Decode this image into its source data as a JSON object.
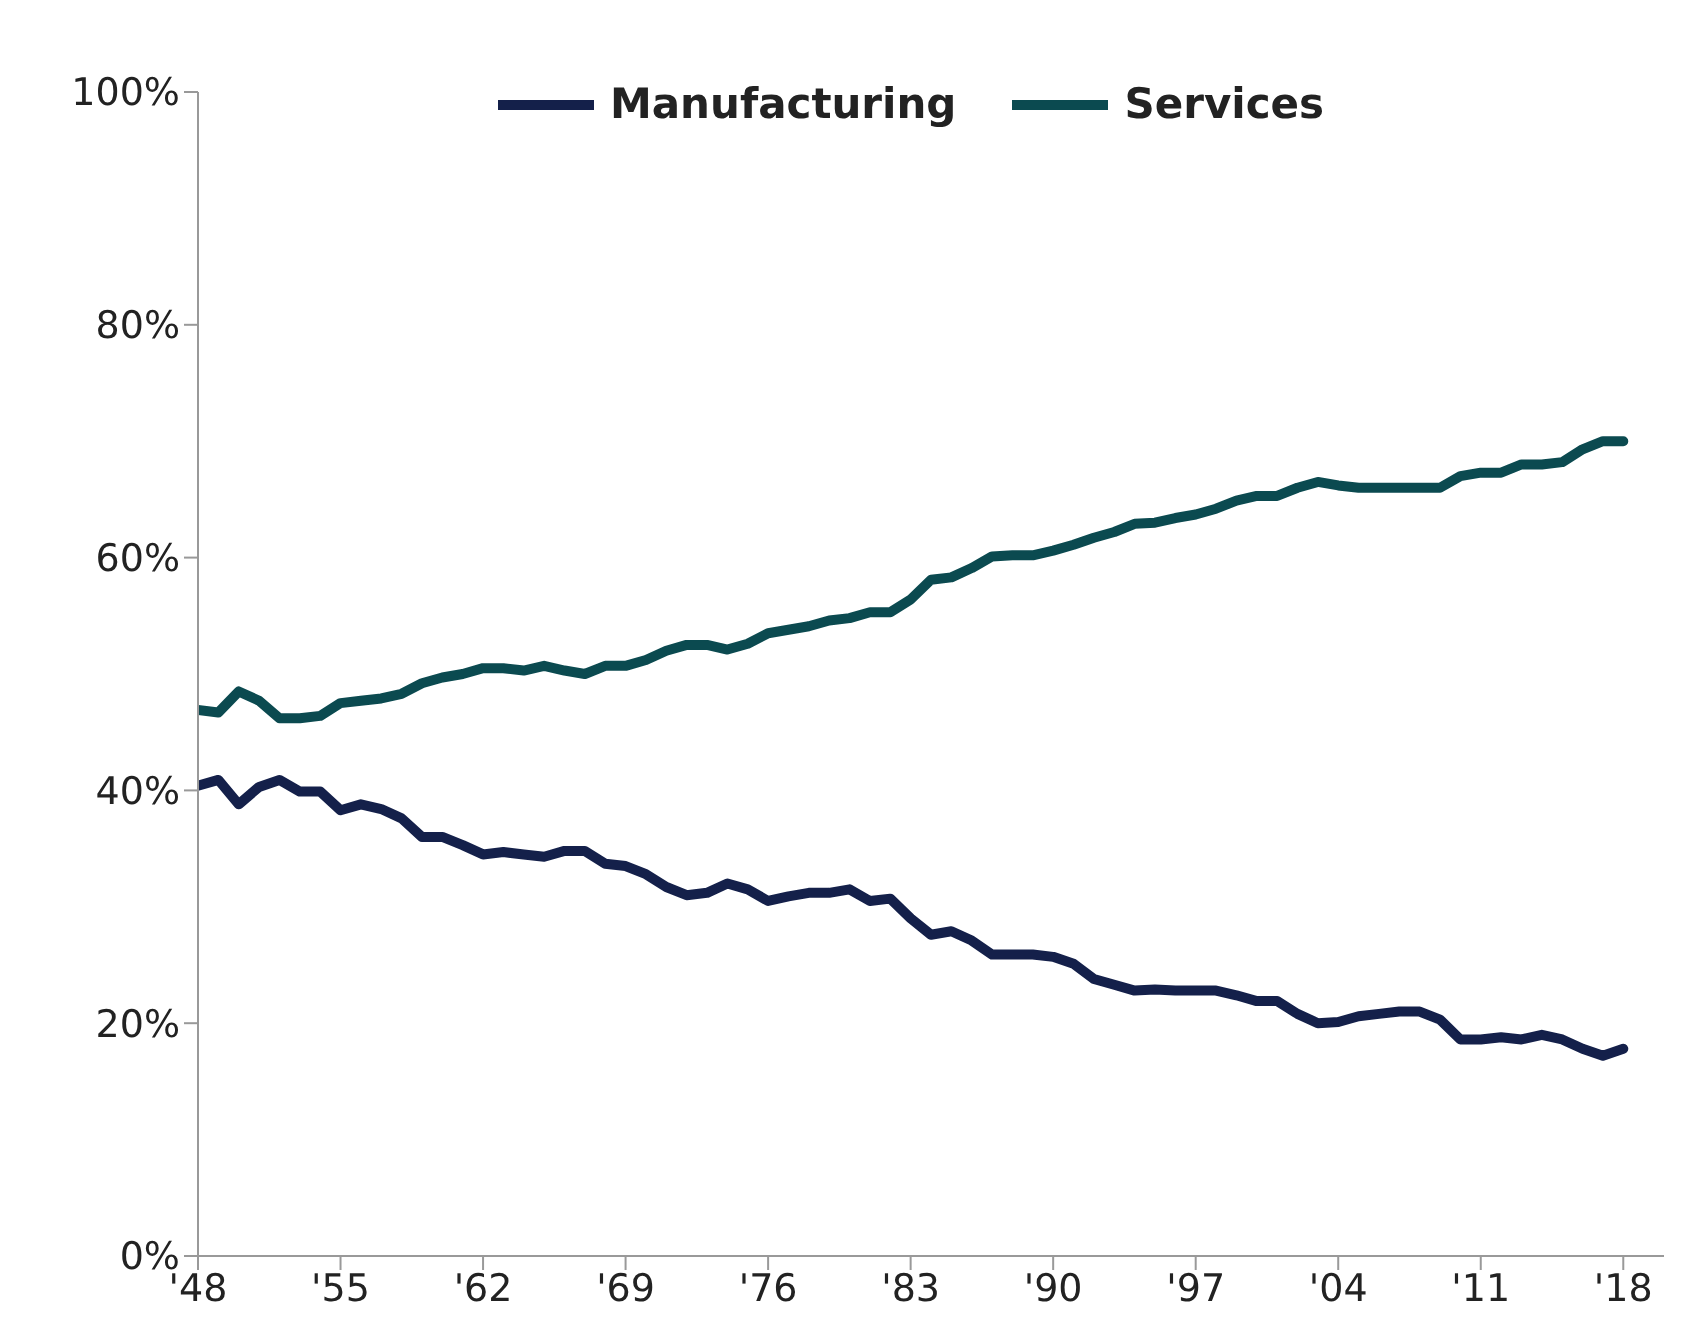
{
  "chart_data": {
    "type": "line",
    "x": [
      1948,
      1949,
      1950,
      1951,
      1952,
      1953,
      1954,
      1955,
      1956,
      1957,
      1958,
      1959,
      1960,
      1961,
      1962,
      1963,
      1964,
      1965,
      1966,
      1967,
      1968,
      1969,
      1970,
      1971,
      1972,
      1973,
      1974,
      1975,
      1976,
      1977,
      1978,
      1979,
      1980,
      1981,
      1982,
      1983,
      1984,
      1985,
      1986,
      1987,
      1988,
      1989,
      1990,
      1991,
      1992,
      1993,
      1994,
      1995,
      1996,
      1997,
      1998,
      1999,
      2000,
      2001,
      2002,
      2003,
      2004,
      2005,
      2006,
      2007,
      2008,
      2009,
      2010,
      2011,
      2012,
      2013,
      2014,
      2015,
      2016,
      2017,
      2018
    ],
    "series": [
      {
        "name": "Manufacturing",
        "color": "#14204a",
        "values": [
          40.4,
          40.9,
          38.8,
          40.3,
          40.9,
          39.9,
          39.9,
          38.3,
          38.8,
          38.4,
          37.6,
          36.0,
          36.0,
          35.3,
          34.5,
          34.7,
          34.5,
          34.3,
          34.8,
          34.8,
          33.7,
          33.5,
          32.8,
          31.7,
          31.0,
          31.2,
          32.0,
          31.5,
          30.5,
          30.9,
          31.2,
          31.2,
          31.5,
          30.5,
          30.7,
          29.0,
          27.6,
          27.9,
          27.1,
          25.9,
          25.9,
          25.9,
          25.7,
          25.1,
          23.8,
          23.3,
          22.8,
          22.9,
          22.8,
          22.8,
          22.8,
          22.4,
          21.9,
          21.9,
          20.8,
          20.0,
          20.1,
          20.6,
          20.8,
          21.0,
          21.0,
          20.3,
          18.6,
          18.6,
          18.8,
          18.6,
          19.0,
          18.6,
          17.8,
          17.2,
          17.8
        ]
      },
      {
        "name": "Services",
        "color": "#0b4a50",
        "values": [
          46.9,
          46.7,
          48.5,
          47.7,
          46.2,
          46.2,
          46.4,
          47.5,
          47.7,
          47.9,
          48.3,
          49.2,
          49.7,
          50.0,
          50.5,
          50.5,
          50.3,
          50.7,
          50.3,
          50.0,
          50.7,
          50.7,
          51.2,
          52.0,
          52.5,
          52.5,
          52.1,
          52.6,
          53.5,
          53.8,
          54.1,
          54.6,
          54.8,
          55.3,
          55.3,
          56.4,
          58.1,
          58.3,
          59.1,
          60.1,
          60.2,
          60.2,
          60.6,
          61.1,
          61.7,
          62.2,
          62.9,
          63.0,
          63.4,
          63.7,
          64.2,
          64.9,
          65.3,
          65.3,
          66.0,
          66.5,
          66.2,
          66.0,
          66.0,
          66.0,
          66.0,
          66.0,
          67.0,
          67.3,
          67.3,
          68.0,
          68.0,
          68.2,
          69.3,
          70.0,
          70.0
        ]
      }
    ],
    "xlim": [
      1948,
      2020
    ],
    "xticks": [
      {
        "value": 1948,
        "label": "'48"
      },
      {
        "value": 1955,
        "label": "'55"
      },
      {
        "value": 1962,
        "label": "'62"
      },
      {
        "value": 1969,
        "label": "'69"
      },
      {
        "value": 1976,
        "label": "'76"
      },
      {
        "value": 1983,
        "label": "'83"
      },
      {
        "value": 1990,
        "label": "'90"
      },
      {
        "value": 1997,
        "label": "'97"
      },
      {
        "value": 2004,
        "label": "'04"
      },
      {
        "value": 2011,
        "label": "'11"
      },
      {
        "value": 2018,
        "label": "'18"
      }
    ],
    "ylim": [
      0,
      100
    ],
    "yticks": [
      {
        "value": 0,
        "label": "0%"
      },
      {
        "value": 20,
        "label": "20%"
      },
      {
        "value": 40,
        "label": "40%"
      },
      {
        "value": 60,
        "label": "60%"
      },
      {
        "value": 80,
        "label": "80%"
      },
      {
        "value": 100,
        "label": "100%"
      }
    ],
    "grid": false,
    "legend": "top",
    "marker": "none",
    "line_style": "solid"
  }
}
